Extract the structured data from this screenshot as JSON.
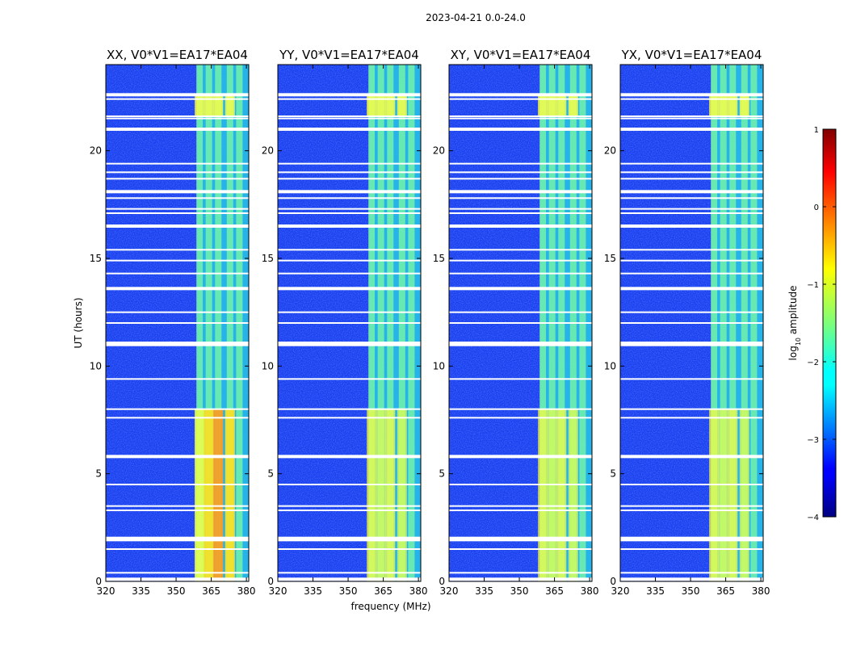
{
  "chart_data": {
    "type": "heatmap",
    "suptitle": "2023-04-21 0.0-24.0",
    "xlabel": "frequency (MHz)",
    "ylabel": "UT (hours)",
    "xlim": [
      320,
      381
    ],
    "ylim": [
      0,
      24
    ],
    "x_ticks": [
      320,
      335,
      350,
      365,
      380
    ],
    "y_ticks": [
      0,
      5,
      10,
      15,
      20
    ],
    "panels": [
      {
        "title": "XX, V0*V1=EA17*EA04",
        "polarization": "XX"
      },
      {
        "title": "YY, V0*V1=EA17*EA04",
        "polarization": "YY"
      },
      {
        "title": "XY, V0*V1=EA17*EA04",
        "polarization": "XY"
      },
      {
        "title": "YX, V0*V1=EA17*EA04",
        "polarization": "YX"
      }
    ],
    "signal_band_mhz": [
      359,
      381
    ],
    "signal_channels_mhz": [
      360,
      364,
      368,
      373,
      377
    ],
    "flagged_hours": [
      0.1,
      0.4,
      1.5,
      1.9,
      2.0,
      3.3,
      3.5,
      4.5,
      5.8,
      7.6,
      8.0,
      9.4,
      11.0,
      11.1,
      12.0,
      12.5,
      13.6,
      14.3,
      14.9,
      15.4,
      16.5,
      17.1,
      17.3,
      17.8,
      18.1,
      18.7,
      19.0,
      19.4,
      21.0,
      21.5,
      21.6,
      22.4,
      22.6
    ],
    "colorbar": {
      "label": "log10 amplitude",
      "min": -4,
      "max": 1,
      "ticks": [
        1,
        0,
        -1,
        -2,
        -3,
        -4
      ],
      "tick_labels": [
        "1",
        "0",
        "−1",
        "−2",
        "−3",
        "−4"
      ],
      "colormap": "jet"
    }
  },
  "labels": {
    "cb_label_main": "log",
    "cb_label_sub": "10",
    "cb_label_rest": " amplitude"
  }
}
